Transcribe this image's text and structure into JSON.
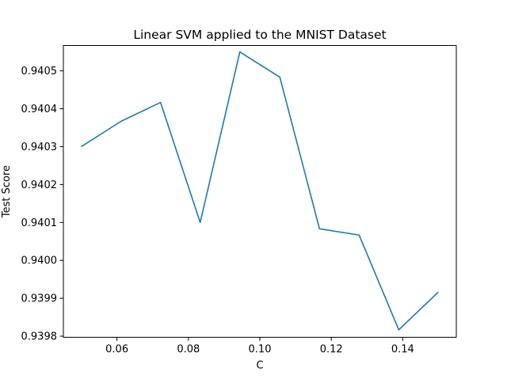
{
  "chart_data": {
    "type": "line",
    "title": "Linear SVM applied to the MNIST Dataset",
    "xlabel": "C",
    "ylabel": "Test Score",
    "x": [
      0.05,
      0.0611,
      0.0722,
      0.0833,
      0.0944,
      0.1056,
      0.1167,
      0.1278,
      0.1389,
      0.15
    ],
    "series": [
      {
        "values": [
          0.9403,
          0.94036667,
          0.94041667,
          0.9401,
          0.94055,
          0.94048333,
          0.94008333,
          0.94006667,
          0.93981667,
          0.93991667
        ],
        "color": "#1f77b4"
      }
    ],
    "xlim": [
      0.045,
      0.155
    ],
    "ylim": [
      0.939797,
      0.940567
    ],
    "xticks": [
      0.06,
      0.08,
      0.1,
      0.12,
      0.14
    ],
    "xtick_labels": [
      "0.06",
      "0.08",
      "0.10",
      "0.12",
      "0.14"
    ],
    "yticks": [
      0.9398,
      0.9399,
      0.94,
      0.9401,
      0.9402,
      0.9403,
      0.9404,
      0.9405
    ],
    "ytick_labels": [
      "0.9398",
      "0.9399",
      "0.9400",
      "0.9401",
      "0.9402",
      "0.9403",
      "0.9404",
      "0.9405"
    ],
    "grid": false,
    "legend": "none"
  }
}
